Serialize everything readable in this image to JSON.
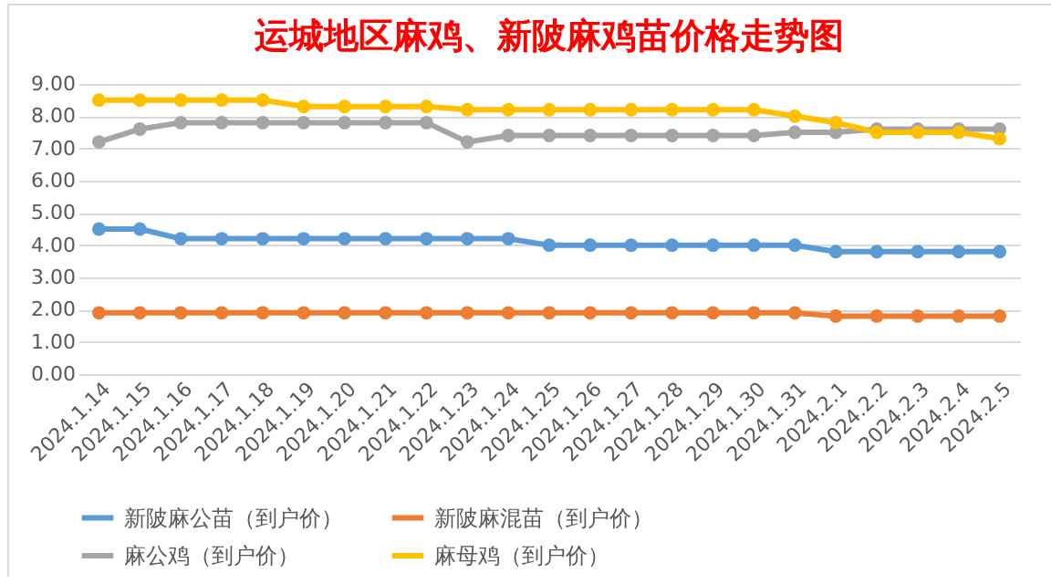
{
  "chart_data": {
    "type": "line",
    "title": "运城地区麻鸡、新陂麻鸡苗价格走势图",
    "categories": [
      "2024.1.14",
      "2024.1.15",
      "2024.1.16",
      "2024.1.17",
      "2024.1.18",
      "2024.1.19",
      "2024.1.20",
      "2024.1.21",
      "2024.1.22",
      "2024.1.23",
      "2024.1.24",
      "2024.1.25",
      "2024.1.26",
      "2024.1.27",
      "2024.1.28",
      "2024.1.29",
      "2024.1.30",
      "2024.1.31",
      "2024.2.1",
      "2024.2.2",
      "2024.2.3",
      "2024.2.4",
      "2024.2.5"
    ],
    "series": [
      {
        "name": "新陂麻公苗（到户价）",
        "color": "#5b9bd5",
        "values": [
          4.5,
          4.5,
          4.2,
          4.2,
          4.2,
          4.2,
          4.2,
          4.2,
          4.2,
          4.2,
          4.2,
          4.0,
          4.0,
          4.0,
          4.0,
          4.0,
          4.0,
          4.0,
          3.8,
          3.8,
          3.8,
          3.8,
          3.8
        ]
      },
      {
        "name": "新陂麻混苗（到户价）",
        "color": "#ed7d31",
        "values": [
          1.9,
          1.9,
          1.9,
          1.9,
          1.9,
          1.9,
          1.9,
          1.9,
          1.9,
          1.9,
          1.9,
          1.9,
          1.9,
          1.9,
          1.9,
          1.9,
          1.9,
          1.9,
          1.8,
          1.8,
          1.8,
          1.8,
          1.8
        ]
      },
      {
        "name": "麻公鸡（到户价）",
        "color": "#a5a5a5",
        "values": [
          7.2,
          7.6,
          7.8,
          7.8,
          7.8,
          7.8,
          7.8,
          7.8,
          7.8,
          7.2,
          7.4,
          7.4,
          7.4,
          7.4,
          7.4,
          7.4,
          7.4,
          7.5,
          7.5,
          7.6,
          7.6,
          7.6,
          7.6
        ]
      },
      {
        "name": "麻母鸡（到户价）",
        "color": "#ffc000",
        "values": [
          8.5,
          8.5,
          8.5,
          8.5,
          8.5,
          8.3,
          8.3,
          8.3,
          8.3,
          8.2,
          8.2,
          8.2,
          8.2,
          8.2,
          8.2,
          8.2,
          8.2,
          8.0,
          7.8,
          7.5,
          7.5,
          7.5,
          7.3
        ]
      }
    ],
    "ylim": [
      0,
      9
    ],
    "yticks": [
      {
        "value": 0,
        "label": "0.00"
      },
      {
        "value": 1,
        "label": "1.00"
      },
      {
        "value": 2,
        "label": "2.00"
      },
      {
        "value": 3,
        "label": "3.00"
      },
      {
        "value": 4,
        "label": "4.00"
      },
      {
        "value": 5,
        "label": "5.00"
      },
      {
        "value": 6,
        "label": "6.00"
      },
      {
        "value": 7,
        "label": "7.00"
      },
      {
        "value": 8,
        "label": "8.00"
      },
      {
        "value": 9,
        "label": "9.00"
      }
    ],
    "grid": "y",
    "legend": "bottom",
    "marker": "circle",
    "line_style": "solid"
  }
}
